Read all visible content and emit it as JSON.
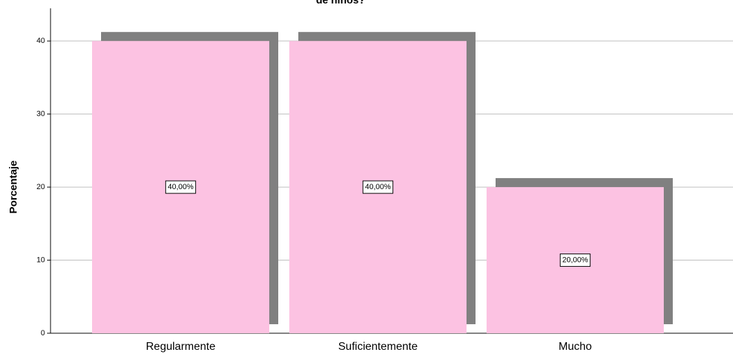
{
  "chart_data": {
    "type": "bar",
    "title": "de niños?",
    "ylabel": "Porcentaje",
    "categories": [
      "Regularmente",
      "Suficientemente",
      "Mucho"
    ],
    "values": [
      40,
      40,
      20
    ],
    "value_labels": [
      "40,00%",
      "40,00%",
      "20,00%"
    ],
    "color": "#fcc2e2",
    "shadow_color": "#808080",
    "ylim": [
      0,
      44
    ],
    "yticks": [
      0,
      10,
      20,
      30,
      40
    ],
    "grid": true
  }
}
